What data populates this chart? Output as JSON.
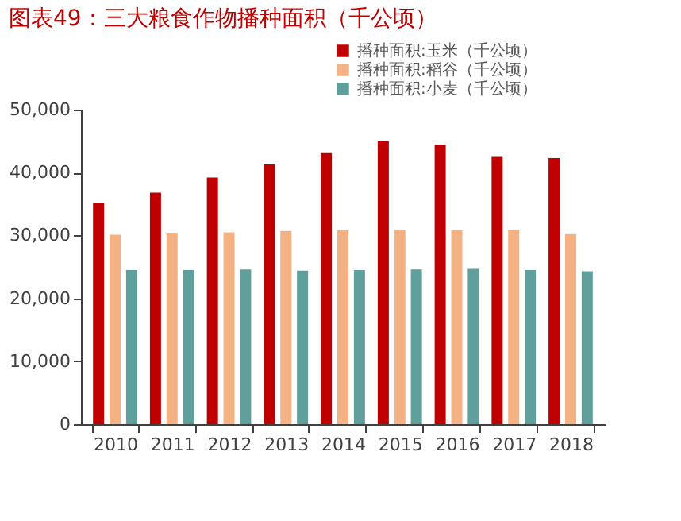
{
  "chart_data": {
    "type": "bar",
    "title": "图表49：三大粮食作物播种面积（千公顷）",
    "categories": [
      "2010",
      "2011",
      "2012",
      "2013",
      "2014",
      "2015",
      "2016",
      "2017",
      "2018"
    ],
    "series": [
      {
        "name": "播种面积:玉米（千公顷）",
        "color": "#c00000",
        "values": [
          35100,
          36800,
          39200,
          41300,
          43100,
          45000,
          44400,
          42500,
          42300
        ]
      },
      {
        "name": "播种面积:稻谷（千公顷）",
        "color": "#f4b183",
        "values": [
          30100,
          30300,
          30500,
          30700,
          30800,
          30800,
          30800,
          30800,
          30200
        ]
      },
      {
        "name": "播种面积:小麦（千公顷）",
        "color": "#5fa09c",
        "values": [
          24500,
          24500,
          24600,
          24400,
          24500,
          24600,
          24700,
          24500,
          24300
        ]
      }
    ],
    "ylim": [
      0,
      50000
    ],
    "yticks": [
      0,
      {
        "value": 10000,
        "label": "10,000"
      },
      {
        "value": 20000,
        "label": "20,000"
      },
      {
        "value": 30000,
        "label": "30,000"
      },
      {
        "value": 40000,
        "label": "40,000"
      },
      {
        "value": 50000,
        "label": "50,000"
      }
    ],
    "grid": false,
    "legend": "top"
  }
}
